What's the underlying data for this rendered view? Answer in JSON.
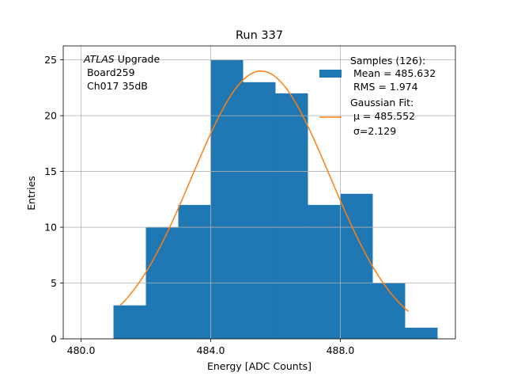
{
  "chart_data": {
    "type": "bar",
    "title": "Run 337",
    "xlabel": "Energy [ADC Counts]",
    "ylabel": "Entries",
    "xlim": [
      479.45,
      491.55
    ],
    "ylim": [
      0,
      26.25
    ],
    "x_ticks": [
      480.0,
      484.0,
      488.0
    ],
    "x_tick_labels": [
      "480.0",
      "484.0",
      "488.0"
    ],
    "y_ticks": [
      0,
      5,
      10,
      15,
      20,
      25
    ],
    "y_tick_labels": [
      "0",
      "5",
      "10",
      "15",
      "20",
      "25"
    ],
    "grid": true,
    "bar_color": "#1f77b4",
    "fit_color": "#ff7f0e",
    "annotation": {
      "italic": "ATLAS",
      "rest": " Upgrade",
      "lines": [
        " Board259",
        " Ch017 35dB"
      ]
    },
    "histogram": {
      "name": "Samples (126):",
      "bin_edges": [
        481.0,
        482.0,
        483.0,
        484.0,
        485.0,
        486.0,
        487.0,
        488.0,
        489.0,
        490.0,
        491.0
      ],
      "values": [
        3,
        10,
        12,
        25,
        23,
        22,
        12,
        13,
        5,
        1
      ],
      "legend_lines": [
        "Samples (126):",
        " Mean = 485.632",
        " RMS = 1.974"
      ]
    },
    "fit": {
      "name": "Gaussian Fit:",
      "mu": 485.552,
      "sigma": 2.129,
      "amplitude": 24.0,
      "x_range": [
        481.2,
        490.1
      ],
      "legend_lines": [
        "Gaussian Fit:",
        " μ = 485.552",
        " σ=2.129"
      ]
    },
    "legend_position": "top-right"
  }
}
